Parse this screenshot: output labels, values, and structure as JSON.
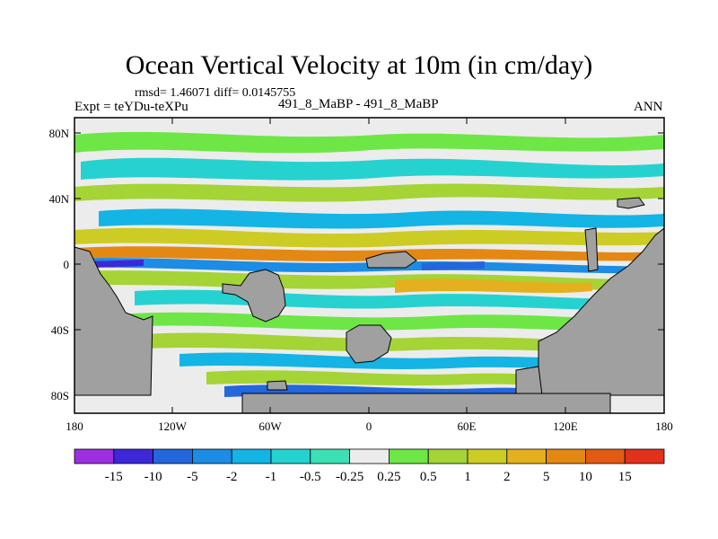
{
  "title": "Ocean Vertical Velocity at 10m (in cm/day)",
  "stats": "rmsd= 1.46071 diff= 0.0145755",
  "experiment": "Expt = teYDu-teXPu",
  "cases": "491_8_MaBP - 491_8_MaBP",
  "season": "ANN",
  "lat_ticks": [
    "80N",
    "40N",
    "0",
    "40S",
    "80S"
  ],
  "lon_ticks": [
    "180",
    "120W",
    "60W",
    "0",
    "60E",
    "120E",
    "180"
  ],
  "colorbar": {
    "labels": [
      "-15",
      "-10",
      "-5",
      "-2",
      "-1",
      "-0.5",
      "-0.25",
      "0.25",
      "0.5",
      "1",
      "2",
      "5",
      "10",
      "15"
    ],
    "colors": [
      "#9e2fe0",
      "#3c28d8",
      "#2466dc",
      "#1c8ce4",
      "#14b4e4",
      "#26d2d0",
      "#3ce0b4",
      "#ececec",
      "#6ee646",
      "#a4d436",
      "#cccc24",
      "#e4b020",
      "#e48814",
      "#e25a14",
      "#e0321c"
    ]
  },
  "land_color": "#a0a0a0"
}
